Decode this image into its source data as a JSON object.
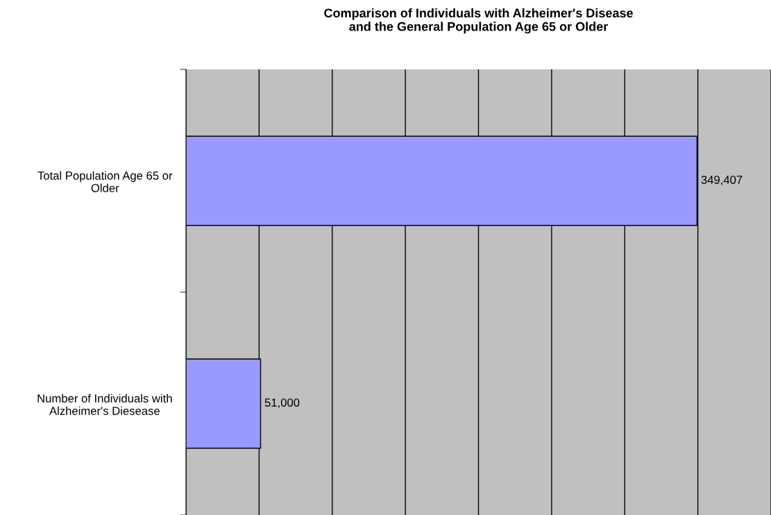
{
  "chart_data": {
    "type": "bar",
    "orientation": "horizontal",
    "title": "Comparison of Individuals with Alzheimer's Disease\nand the General Population Age 65 or Older",
    "categories": [
      "Total Population Age 65 or\nOlder",
      "Number of Individuals with\nAlzheimer's Diesease"
    ],
    "values": [
      349407,
      51000
    ],
    "value_labels": [
      "349,407",
      "51,000"
    ],
    "color": "#9999ff",
    "xlim": [
      0,
      400000
    ],
    "xticks": [
      {
        "value": 0,
        "label": null
      },
      {
        "value": 50000,
        "label": null
      },
      {
        "value": 100000,
        "label": null
      },
      {
        "value": 150000,
        "label": null
      },
      {
        "value": 200000,
        "label": null
      },
      {
        "value": 250000,
        "label": null
      },
      {
        "value": 300000,
        "label": null
      },
      {
        "value": 350000,
        "label": null
      },
      {
        "value": 400000,
        "label": null
      }
    ],
    "grid": "x",
    "tick_labels": "y"
  }
}
